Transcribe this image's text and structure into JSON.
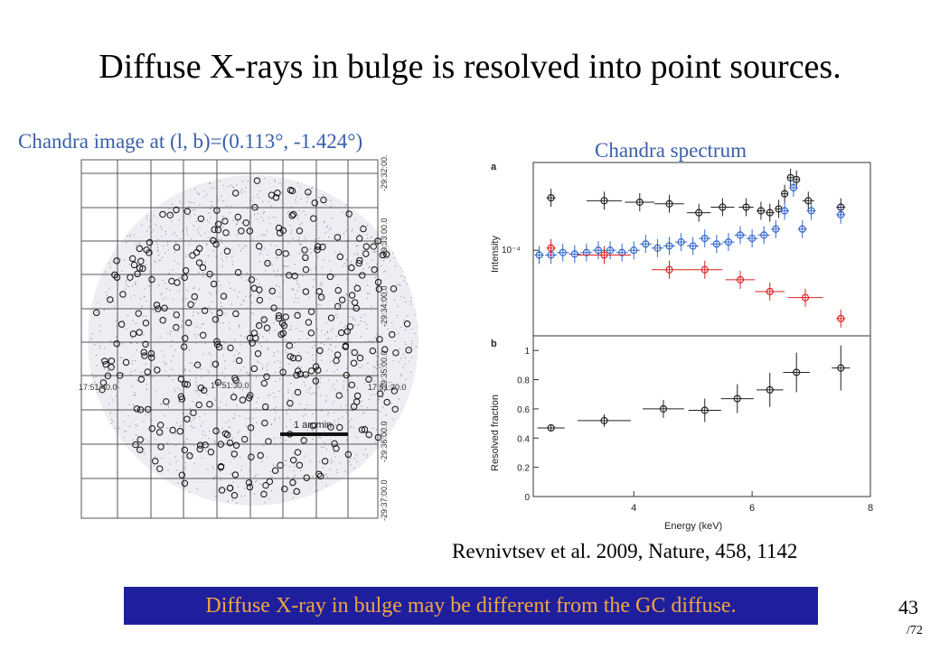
{
  "slide": {
    "title": "Diffuse X-rays in bulge is resolved into point sources.",
    "image_label": "Chandra image at (l, b)=(0.113°, -1.424°)",
    "spectrum_label": "Chandra spectrum",
    "citation": "Revnivtsev et al. 2009, Nature, 458, 1142",
    "banner": "Diffuse X-ray in bulge may be different from the GC diffuse.",
    "page_number": "43",
    "page_total": "/72"
  },
  "sky_image": {
    "scale_bar": "1 arcmin",
    "ra_ticks": [
      "17:51:40.0",
      "17:51:30.0",
      "17:51:20.0"
    ],
    "dec_ticks": [
      "-29:32:00.0",
      "-29:33:00.0",
      "-29:34:00.0",
      "-29:35:00.0",
      "-29:36:00.0",
      "-29:37:00.0"
    ]
  },
  "colors": {
    "accent_blue": "#3a5fa8",
    "banner_bg": "#1f1f9e",
    "banner_text": "#f0a640",
    "series_black": "#222222",
    "series_red": "#dd2222",
    "series_blue": "#3366cc"
  },
  "chart_data": [
    {
      "type": "line",
      "panel": "a",
      "xlabel": "Energy (keV)",
      "ylabel": "Intensity",
      "y_scale": "log",
      "y_tick_label": "10⁻⁴",
      "xlim": [
        2.3,
        8
      ],
      "series": [
        {
          "x": [
            2.6,
            3.5,
            4.1,
            4.6,
            5.1,
            5.5,
            5.9,
            6.15,
            6.3,
            6.45,
            6.55,
            6.65,
            6.75,
            6.95,
            7.5
          ],
          "y": [
            3.2,
            3.0,
            2.9,
            2.8,
            2.3,
            2.6,
            2.6,
            2.4,
            2.3,
            2.5,
            3.5,
            5.0,
            4.8,
            3.0,
            2.6
          ]
        },
        {
          "x": [
            2.4,
            2.6,
            2.8,
            3.0,
            3.2,
            3.4,
            3.6,
            3.8,
            4.0,
            4.2,
            4.4,
            4.6,
            4.8,
            5.0,
            5.2,
            5.4,
            5.6,
            5.8,
            6.0,
            6.2,
            6.4,
            6.55,
            6.7,
            6.85,
            7.0,
            7.5
          ],
          "y": [
            0.9,
            0.9,
            0.95,
            0.92,
            0.95,
            1.0,
            1.0,
            0.95,
            1.0,
            1.15,
            1.05,
            1.1,
            1.2,
            1.1,
            1.3,
            1.15,
            1.2,
            1.4,
            1.3,
            1.4,
            1.6,
            2.4,
            4.0,
            1.6,
            2.4,
            2.2
          ]
        },
        {
          "x": [
            2.6,
            3.5,
            4.6,
            5.2,
            5.8,
            6.3,
            6.9,
            7.5
          ],
          "y": [
            1.05,
            0.9,
            0.65,
            0.65,
            0.52,
            0.4,
            0.35,
            0.22
          ]
        }
      ]
    },
    {
      "type": "line",
      "panel": "b",
      "xlabel": "Energy (keV)",
      "ylabel": "Resolved fraction",
      "xlim": [
        2.3,
        8
      ],
      "ylim": [
        0,
        1.1
      ],
      "x_ticks": [
        4,
        6,
        8
      ],
      "y_ticks": [
        0,
        0.2,
        0.4,
        0.6,
        0.8,
        1
      ],
      "series": [
        {
          "x": [
            2.6,
            3.5,
            4.5,
            5.2,
            5.75,
            6.3,
            6.75,
            7.5
          ],
          "y": [
            0.47,
            0.52,
            0.6,
            0.59,
            0.67,
            0.73,
            0.85,
            0.88
          ]
        }
      ]
    }
  ]
}
